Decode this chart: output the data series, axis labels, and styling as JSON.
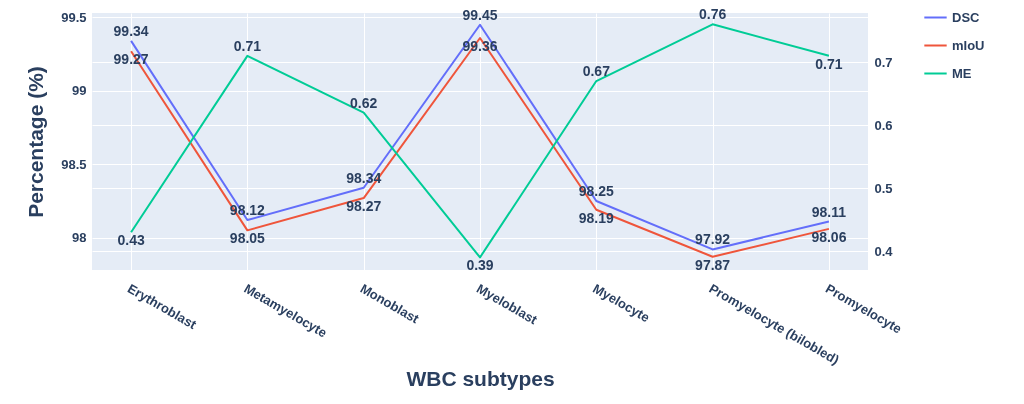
{
  "chart_data": {
    "type": "line",
    "xlabel": "WBC subtypes",
    "ylabel": "Percentage (%)",
    "categories": [
      "Erythroblast",
      "Metamyelocyte",
      "Monoblast",
      "Myeloblast",
      "Myelocyte",
      "Promyelocyte (bilobled)",
      "Promyelocyte"
    ],
    "series": [
      {
        "name": "DSC",
        "color": "#636efa",
        "values": [
          99.34,
          98.12,
          98.34,
          99.45,
          98.25,
          97.92,
          98.11
        ]
      },
      {
        "name": "mIoU",
        "color": "#ef553b",
        "values": [
          99.27,
          98.05,
          98.27,
          99.36,
          98.19,
          97.87,
          98.06
        ]
      },
      {
        "name": "ME",
        "color": "#00cc96",
        "axis": "y2",
        "values": [
          0.43,
          0.71,
          0.62,
          0.39,
          0.67,
          0.76,
          0.71
        ]
      }
    ],
    "ylim": [
      97.78,
      99.53
    ],
    "yticks": [
      98,
      98.5,
      99,
      99.5
    ],
    "y2lim": [
      0.37,
      0.778
    ],
    "y2ticks": [
      0.4,
      0.5,
      0.6,
      0.7
    ],
    "data_labels": true,
    "grid": true,
    "legend": "top right"
  }
}
